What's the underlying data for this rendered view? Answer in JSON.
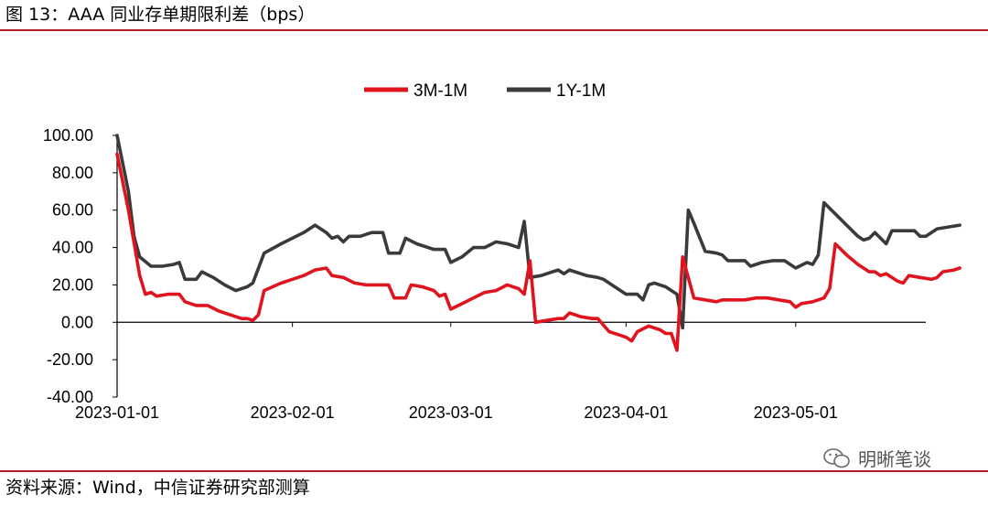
{
  "header": {
    "title": "图 13：AAA 同业存单期限利差（bps）"
  },
  "footer": {
    "source": "资料来源：Wind，中信证券研究部测算"
  },
  "watermark": {
    "text": "明晰笔谈",
    "icon": "wechat-icon"
  },
  "chart_data": {
    "type": "line",
    "title": "",
    "xlabel": "",
    "ylabel": "",
    "ylim": [
      -40,
      100
    ],
    "yticks": [
      "100.00",
      "80.00",
      "60.00",
      "40.00",
      "20.00",
      "0.00",
      "-20.00",
      "-40.00"
    ],
    "xlim": [
      "2023-01-01",
      "2023-05-24"
    ],
    "xticks": [
      "2023-01-01",
      "2023-02-01",
      "2023-03-01",
      "2023-04-01",
      "2023-05-01"
    ],
    "legend_position": "top-center",
    "grid": false,
    "series": [
      {
        "name": "3M-1M",
        "color": "#e0141e",
        "points": [
          [
            "2023-01-01",
            90
          ],
          [
            "2023-01-03",
            60
          ],
          [
            "2023-01-05",
            25
          ],
          [
            "2023-01-06",
            15
          ],
          [
            "2023-01-07",
            16
          ],
          [
            "2023-01-08",
            14
          ],
          [
            "2023-01-10",
            15
          ],
          [
            "2023-01-12",
            15
          ],
          [
            "2023-01-13",
            11
          ],
          [
            "2023-01-15",
            9
          ],
          [
            "2023-01-17",
            9
          ],
          [
            "2023-01-19",
            6
          ],
          [
            "2023-01-21",
            4
          ],
          [
            "2023-01-23",
            2
          ],
          [
            "2023-01-24",
            2
          ],
          [
            "2023-01-25",
            1
          ],
          [
            "2023-01-26",
            4
          ],
          [
            "2023-01-27",
            17
          ],
          [
            "2023-01-30",
            21
          ],
          [
            "2023-02-03",
            25
          ],
          [
            "2023-02-05",
            28
          ],
          [
            "2023-02-07",
            29
          ],
          [
            "2023-02-08",
            25
          ],
          [
            "2023-02-10",
            24
          ],
          [
            "2023-02-12",
            21
          ],
          [
            "2023-02-14",
            20
          ],
          [
            "2023-02-16",
            20
          ],
          [
            "2023-02-18",
            20
          ],
          [
            "2023-02-19",
            13
          ],
          [
            "2023-02-21",
            13
          ],
          [
            "2023-02-22",
            20
          ],
          [
            "2023-02-24",
            19
          ],
          [
            "2023-02-26",
            17
          ],
          [
            "2023-02-27",
            14
          ],
          [
            "2023-02-28",
            15
          ],
          [
            "2023-03-01",
            7
          ],
          [
            "2023-03-03",
            10
          ],
          [
            "2023-03-05",
            13
          ],
          [
            "2023-03-07",
            16
          ],
          [
            "2023-03-09",
            17
          ],
          [
            "2023-03-11",
            20
          ],
          [
            "2023-03-13",
            18
          ],
          [
            "2023-03-14",
            15
          ],
          [
            "2023-03-15",
            33
          ],
          [
            "2023-03-16",
            0
          ],
          [
            "2023-03-18",
            1
          ],
          [
            "2023-03-20",
            2
          ],
          [
            "2023-03-21",
            2
          ],
          [
            "2023-03-22",
            5
          ],
          [
            "2023-03-24",
            3
          ],
          [
            "2023-03-26",
            2
          ],
          [
            "2023-03-27",
            2
          ],
          [
            "2023-03-29",
            -5
          ],
          [
            "2023-03-31",
            -7
          ],
          [
            "2023-04-01",
            -8
          ],
          [
            "2023-04-02",
            -10
          ],
          [
            "2023-04-03",
            -5
          ],
          [
            "2023-04-05",
            -2
          ],
          [
            "2023-04-07",
            -4
          ],
          [
            "2023-04-08",
            -6
          ],
          [
            "2023-04-09",
            -6
          ],
          [
            "2023-04-10",
            -15
          ],
          [
            "2023-04-11",
            35
          ],
          [
            "2023-04-13",
            13
          ],
          [
            "2023-04-15",
            12
          ],
          [
            "2023-04-17",
            11
          ],
          [
            "2023-04-18",
            12
          ],
          [
            "2023-04-20",
            12
          ],
          [
            "2023-04-22",
            12
          ],
          [
            "2023-04-24",
            13
          ],
          [
            "2023-04-26",
            13
          ],
          [
            "2023-04-28",
            12
          ],
          [
            "2023-04-30",
            11
          ],
          [
            "2023-05-01",
            8
          ],
          [
            "2023-05-02",
            10
          ],
          [
            "2023-05-04",
            11
          ],
          [
            "2023-05-06",
            13
          ],
          [
            "2023-05-07",
            18
          ],
          [
            "2023-05-08",
            42
          ],
          [
            "2023-05-10",
            36
          ],
          [
            "2023-05-12",
            31
          ],
          [
            "2023-05-14",
            27
          ],
          [
            "2023-05-15",
            27
          ],
          [
            "2023-05-16",
            25
          ],
          [
            "2023-05-17",
            26
          ],
          [
            "2023-05-19",
            22
          ],
          [
            "2023-05-20",
            21
          ],
          [
            "2023-05-21",
            25
          ],
          [
            "2023-05-23",
            24
          ],
          [
            "2023-05-25",
            23
          ],
          [
            "2023-05-26",
            24
          ],
          [
            "2023-05-27",
            27
          ],
          [
            "2023-05-29",
            28
          ],
          [
            "2023-05-30",
            29
          ]
        ]
      },
      {
        "name": "1Y-1M",
        "color": "#3a3a3a",
        "points": [
          [
            "2023-01-01",
            100
          ],
          [
            "2023-01-03",
            70
          ],
          [
            "2023-01-04",
            46
          ],
          [
            "2023-01-05",
            35
          ],
          [
            "2023-01-07",
            30
          ],
          [
            "2023-01-09",
            30
          ],
          [
            "2023-01-11",
            31
          ],
          [
            "2023-01-12",
            32
          ],
          [
            "2023-01-13",
            23
          ],
          [
            "2023-01-15",
            23
          ],
          [
            "2023-01-16",
            27
          ],
          [
            "2023-01-18",
            24
          ],
          [
            "2023-01-20",
            20
          ],
          [
            "2023-01-22",
            17
          ],
          [
            "2023-01-24",
            19
          ],
          [
            "2023-01-25",
            21
          ],
          [
            "2023-01-27",
            37
          ],
          [
            "2023-01-30",
            42
          ],
          [
            "2023-02-03",
            48
          ],
          [
            "2023-02-05",
            52
          ],
          [
            "2023-02-07",
            48
          ],
          [
            "2023-02-08",
            45
          ],
          [
            "2023-02-09",
            46
          ],
          [
            "2023-02-10",
            43
          ],
          [
            "2023-02-11",
            46
          ],
          [
            "2023-02-13",
            46
          ],
          [
            "2023-02-15",
            48
          ],
          [
            "2023-02-17",
            48
          ],
          [
            "2023-02-18",
            37
          ],
          [
            "2023-02-20",
            37
          ],
          [
            "2023-02-21",
            45
          ],
          [
            "2023-02-23",
            42
          ],
          [
            "2023-02-25",
            40
          ],
          [
            "2023-02-26",
            39
          ],
          [
            "2023-02-28",
            39
          ],
          [
            "2023-03-01",
            32
          ],
          [
            "2023-03-03",
            35
          ],
          [
            "2023-03-05",
            40
          ],
          [
            "2023-03-07",
            40
          ],
          [
            "2023-03-09",
            43
          ],
          [
            "2023-03-11",
            42
          ],
          [
            "2023-03-13",
            40
          ],
          [
            "2023-03-14",
            54
          ],
          [
            "2023-03-15",
            24
          ],
          [
            "2023-03-17",
            25
          ],
          [
            "2023-03-19",
            27
          ],
          [
            "2023-03-20",
            28
          ],
          [
            "2023-03-21",
            26
          ],
          [
            "2023-03-22",
            28
          ],
          [
            "2023-03-23",
            27
          ],
          [
            "2023-03-25",
            25
          ],
          [
            "2023-03-27",
            24
          ],
          [
            "2023-03-28",
            23
          ],
          [
            "2023-03-30",
            19
          ],
          [
            "2023-04-01",
            15
          ],
          [
            "2023-04-03",
            15
          ],
          [
            "2023-04-04",
            12
          ],
          [
            "2023-04-05",
            20
          ],
          [
            "2023-04-06",
            21
          ],
          [
            "2023-04-08",
            19
          ],
          [
            "2023-04-10",
            15
          ],
          [
            "2023-04-11",
            -3
          ],
          [
            "2023-04-12",
            60
          ],
          [
            "2023-04-13",
            53
          ],
          [
            "2023-04-15",
            38
          ],
          [
            "2023-04-17",
            37
          ],
          [
            "2023-04-18",
            36
          ],
          [
            "2023-04-19",
            33
          ],
          [
            "2023-04-21",
            33
          ],
          [
            "2023-04-22",
            33
          ],
          [
            "2023-04-23",
            30
          ],
          [
            "2023-04-25",
            32
          ],
          [
            "2023-04-27",
            33
          ],
          [
            "2023-04-29",
            33
          ],
          [
            "2023-05-01",
            29
          ],
          [
            "2023-05-03",
            32
          ],
          [
            "2023-05-04",
            31
          ],
          [
            "2023-05-05",
            36
          ],
          [
            "2023-05-06",
            64
          ],
          [
            "2023-05-08",
            58
          ],
          [
            "2023-05-10",
            52
          ],
          [
            "2023-05-12",
            46
          ],
          [
            "2023-05-13",
            44
          ],
          [
            "2023-05-14",
            45
          ],
          [
            "2023-05-15",
            48
          ],
          [
            "2023-05-17",
            42
          ],
          [
            "2023-05-18",
            49
          ],
          [
            "2023-05-20",
            49
          ],
          [
            "2023-05-22",
            49
          ],
          [
            "2023-05-23",
            46
          ],
          [
            "2023-05-24",
            46
          ],
          [
            "2023-05-26",
            50
          ],
          [
            "2023-05-28",
            51
          ],
          [
            "2023-05-30",
            52
          ]
        ]
      }
    ]
  }
}
